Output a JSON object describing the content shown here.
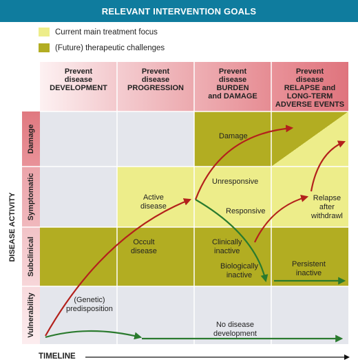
{
  "title": "RELEVANT INTERVENTION GOALS",
  "legend": {
    "current": "Current main treatment focus",
    "future": "(Future) therapeutic challenges"
  },
  "columns": {
    "c1": [
      "Prevent",
      "disease",
      "DEVELOPMENT"
    ],
    "c2": [
      "Prevent",
      "disease",
      "PROGRESSION"
    ],
    "c3": [
      "Prevent",
      "disease",
      "BURDEN",
      "and DAMAGE"
    ],
    "c4": [
      "Prevent",
      "disease",
      "RELAPSE and",
      "LONG-TERM",
      "ADVERSE EVENTS"
    ]
  },
  "rows": {
    "damage": "Damage",
    "symptomatic": "Symptomatic",
    "subclinical": "Subclinical",
    "vulnerability": "Vulnerability"
  },
  "labels": {
    "damage": "Damage",
    "unresponsive": "Unresponsive",
    "active_disease": [
      "Active",
      "disease"
    ],
    "responsive": "Responsive",
    "relapse": [
      "Relapse",
      "after",
      "withdrawl"
    ],
    "occult": [
      "Occult",
      "disease"
    ],
    "clinically_inactive": [
      "Clinically",
      "inactive"
    ],
    "biologically_inactive": [
      "Biologically",
      "inactive"
    ],
    "persistent_inactive": [
      "Persistent",
      "inactive"
    ],
    "genetic": [
      "(Genetic)",
      "predisposition"
    ],
    "no_disease": [
      "No disease",
      "development"
    ]
  },
  "axes": {
    "y": "DISEASE ACTIVITY",
    "x": "TIMELINE"
  },
  "colors": {
    "banner": "#0f7c9e",
    "current_focus": "#eded8a",
    "future_challenge": "#b2ad22",
    "grey_cell": "#e4e6ec",
    "arrow_red": "#b3211c",
    "arrow_green": "#2a7a2e"
  }
}
